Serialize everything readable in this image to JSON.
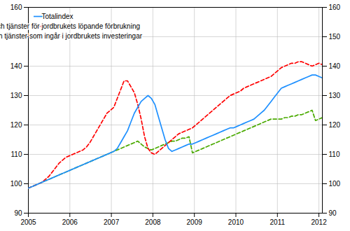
{
  "chart_data": {
    "type": "line",
    "x": [
      2005,
      2005.08236,
      2005.164721,
      2005.247081,
      2005.329442,
      2005.411802,
      2005.494163,
      2005.576523,
      2005.658884,
      2005.741244,
      2005.823605,
      2005.905965,
      2005.988326,
      2006.070686,
      2006.153047,
      2006.235407,
      2006.317767,
      2006.400128,
      2006.482488,
      2006.564849,
      2006.647209,
      2006.72957,
      2006.81193,
      2006.894291,
      2006.976651,
      2007.059012,
      2007.141372,
      2007.223733,
      2007.306093,
      2007.388453,
      2007.470814,
      2007.553174,
      2007.635535,
      2007.717895,
      2007.800256,
      2007.882616,
      2007.964977,
      2008.047337,
      2008.129698,
      2008.212058,
      2008.294419,
      2008.376779,
      2008.45914,
      2008.5415,
      2008.62386,
      2008.706221,
      2008.788581,
      2008.870942,
      2008.953302,
      2009.035663,
      2009.118023,
      2009.200384,
      2009.282744,
      2009.365105,
      2009.447465,
      2009.529826,
      2009.612186,
      2009.694547,
      2009.776907,
      2009.859267,
      2009.941628,
      2010.023988,
      2010.106349,
      2010.188709,
      2010.27107,
      2010.35343,
      2010.435791,
      2010.518151,
      2010.600512,
      2010.682872,
      2010.765233,
      2010.847593,
      2010.929953,
      2011.012314,
      2011.094674,
      2011.177035,
      2011.259395,
      2011.341756,
      2011.424116,
      2011.506477,
      2011.588837,
      2011.671198,
      2011.753558,
      2011.835919,
      2011.918279,
      2012.00064,
      2012.083
    ],
    "series": [
      {
        "name": "Totalindex",
        "color": "#1e90ff",
        "line_style": "solid",
        "values": [
          98.5,
          99.0,
          99.5,
          100.0,
          100.5,
          101.0,
          101.5,
          102.0,
          102.5,
          103.0,
          103.5,
          104.0,
          104.5,
          105.0,
          105.5,
          106.0,
          106.5,
          107.0,
          107.5,
          108.0,
          108.5,
          109.0,
          109.5,
          110.0,
          110.5,
          111.0,
          112.0,
          114.0,
          116.0,
          118.0,
          121.0,
          124.0,
          126.0,
          128.0,
          129.0,
          130.0,
          129.0,
          127.0,
          123.0,
          119.0,
          115.0,
          112.0,
          111.0,
          111.5,
          112.0,
          112.5,
          113.0,
          113.5,
          113.5,
          114.0,
          114.5,
          115.0,
          115.5,
          116.0,
          116.5,
          117.0,
          117.5,
          118.0,
          118.5,
          119.0,
          119.0,
          119.5,
          120.0,
          120.5,
          121.0,
          121.5,
          122.0,
          123.0,
          124.0,
          125.0,
          126.5,
          128.0,
          129.5,
          131.0,
          132.5,
          133.0,
          133.5,
          134.0,
          134.5,
          135.0,
          135.5,
          136.0,
          136.5,
          137.0,
          137.0,
          136.5,
          136.0
        ]
      },
      {
        "name": "Varor och tjänster för jordbrukets löpande förbrukning",
        "color": "#ff0000",
        "line_style": "dashed",
        "values": [
          98.5,
          99.0,
          99.5,
          100.0,
          100.5,
          101.5,
          102.5,
          104.0,
          105.5,
          107.0,
          108.0,
          109.0,
          109.5,
          110.0,
          110.5,
          111.0,
          111.5,
          112.5,
          114.0,
          116.0,
          118.0,
          120.0,
          122.0,
          124.0,
          125.0,
          126.0,
          129.0,
          132.0,
          135.0,
          135.0,
          133.0,
          131.0,
          127.0,
          122.0,
          116.0,
          112.0,
          110.5,
          110.0,
          111.0,
          112.0,
          113.0,
          114.0,
          115.0,
          116.0,
          117.0,
          117.5,
          118.0,
          118.5,
          119.0,
          120.0,
          121.0,
          122.0,
          123.0,
          124.0,
          125.0,
          126.0,
          127.0,
          128.0,
          129.0,
          130.0,
          130.5,
          131.0,
          131.5,
          132.5,
          133.0,
          133.5,
          134.0,
          134.5,
          135.0,
          135.5,
          136.0,
          136.5,
          137.5,
          138.5,
          139.5,
          140.0,
          140.5,
          141.0,
          141.0,
          141.5,
          141.5,
          141.0,
          140.5,
          140.0,
          140.5,
          141.0,
          140.5
        ]
      },
      {
        "name": "Varor och tjänster som ingår i jordbrukets investeringar",
        "color": "#4aaa00",
        "line_style": "dashed",
        "values": [
          98.5,
          99.0,
          99.5,
          100.0,
          100.5,
          101.0,
          101.5,
          102.0,
          102.5,
          103.0,
          103.5,
          104.0,
          104.5,
          105.0,
          105.5,
          106.0,
          106.5,
          107.0,
          107.5,
          108.0,
          108.5,
          109.0,
          109.5,
          110.0,
          110.5,
          111.0,
          111.5,
          112.0,
          112.5,
          113.0,
          113.5,
          114.0,
          114.5,
          113.5,
          112.5,
          112.0,
          111.5,
          112.0,
          112.5,
          113.0,
          113.5,
          114.0,
          114.5,
          114.5,
          115.0,
          115.5,
          115.5,
          116.0,
          110.5,
          111.0,
          111.5,
          112.0,
          112.5,
          113.0,
          113.5,
          114.0,
          114.5,
          115.0,
          115.5,
          116.0,
          116.5,
          117.0,
          117.5,
          118.0,
          118.5,
          119.0,
          119.5,
          120.0,
          120.5,
          121.0,
          121.5,
          122.0,
          122.0,
          122.0,
          122.0,
          122.5,
          122.5,
          123.0,
          123.0,
          123.5,
          123.5,
          124.0,
          124.5,
          125.0,
          121.5,
          122.0,
          122.5
        ]
      }
    ],
    "xlim": [
      2005,
      2012.083
    ],
    "xticks": [
      2005,
      2006,
      2007,
      2008,
      2009,
      2010,
      2011,
      2012
    ],
    "ylim": [
      90,
      160
    ],
    "yticks": [
      90,
      100,
      110,
      120,
      130,
      140,
      150,
      160
    ],
    "y2lim": [
      90,
      160
    ],
    "y2ticks": [
      90,
      100,
      110,
      120,
      130,
      140,
      150,
      160
    ],
    "grid": true,
    "legend": "upper left"
  }
}
